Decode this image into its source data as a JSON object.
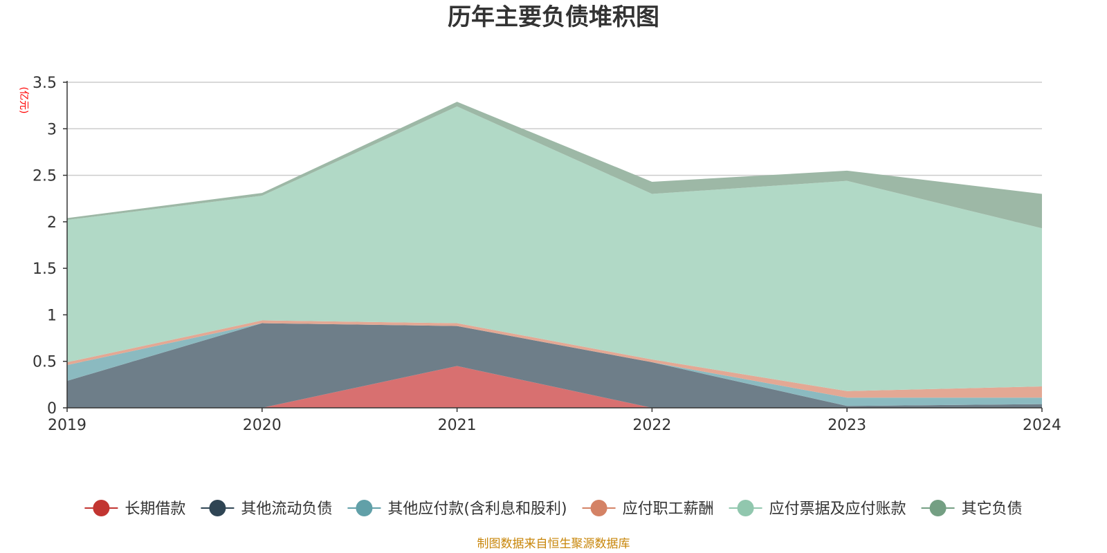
{
  "chart_data": {
    "type": "area",
    "stacked": true,
    "title": "历年主要负债堆积图",
    "unit": "(亿元)",
    "source": "制图数据来自恒生聚源数据库",
    "categories": [
      "2019",
      "2020",
      "2021",
      "2022",
      "2023",
      "2024"
    ],
    "ylim": [
      0,
      3.5
    ],
    "yticks": [
      "0",
      "0.5",
      "1",
      "1.5",
      "2",
      "2.5",
      "3",
      "3.5"
    ],
    "ytick_values": [
      0,
      0.5,
      1,
      1.5,
      2,
      2.5,
      3,
      3.5
    ],
    "grid": true,
    "legend_position": "bottom",
    "series": [
      {
        "name": "长期借款",
        "values": [
          0,
          0,
          0.45,
          0,
          0,
          0
        ],
        "color": "#c23531",
        "fill": "#d87070"
      },
      {
        "name": "其他流动负债",
        "values": [
          0.29,
          0.91,
          0.43,
          0.49,
          0.02,
          0.04
        ],
        "color": "#2f4554",
        "fill": "#6e7e89"
      },
      {
        "name": "其他应付款(含利息和股利)",
        "values": [
          0.17,
          0,
          0,
          0,
          0.09,
          0.07
        ],
        "color": "#61a0a8",
        "fill": "#8bbac0"
      },
      {
        "name": "应付职工薪酬",
        "values": [
          0.03,
          0.03,
          0.03,
          0.03,
          0.07,
          0.12
        ],
        "color": "#d48265",
        "fill": "#e3a894"
      },
      {
        "name": "应付票据及应付账款",
        "values": [
          1.53,
          1.34,
          2.33,
          1.78,
          2.26,
          1.7
        ],
        "color": "#91c7ae",
        "fill": "#b1d9c6"
      },
      {
        "name": "其它负债",
        "values": [
          0.02,
          0.03,
          0.05,
          0.13,
          0.11,
          0.37
        ],
        "color": "#749f83",
        "fill": "#9db8a6"
      }
    ],
    "colors": {
      "title": "#333333",
      "unit": "#ff0000",
      "source": "#c8860a",
      "axis": "#333333",
      "grid": "#cccccc"
    }
  }
}
